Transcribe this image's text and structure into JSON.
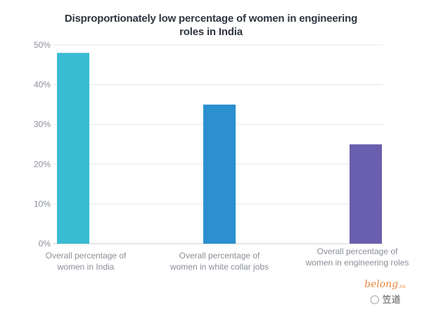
{
  "chart_data": {
    "type": "bar",
    "title_lines": [
      "Disproportionately low percentage of women in engineering",
      "roles in  India"
    ],
    "categories": [
      [
        "Overall percentage of",
        "women in India"
      ],
      [
        "Overall percentage of",
        "women in white collar jobs"
      ],
      [
        "Overall percentage of",
        "women in engineering roles"
      ]
    ],
    "values": [
      48,
      35,
      25
    ],
    "colors": [
      "#38bcd4",
      "#2b8fd0",
      "#6a5fae"
    ],
    "ylim": [
      0,
      50
    ],
    "yticks": [
      0,
      10,
      20,
      30,
      40,
      50
    ],
    "ytick_labels": [
      "0%",
      "10%",
      "20%",
      "30%",
      "40%",
      "50%"
    ],
    "xlabel": "",
    "ylabel": "",
    "grid": true
  },
  "brand": {
    "name": "belong",
    "suffix": ".co"
  },
  "watermark": {
    "text": "笠道"
  }
}
